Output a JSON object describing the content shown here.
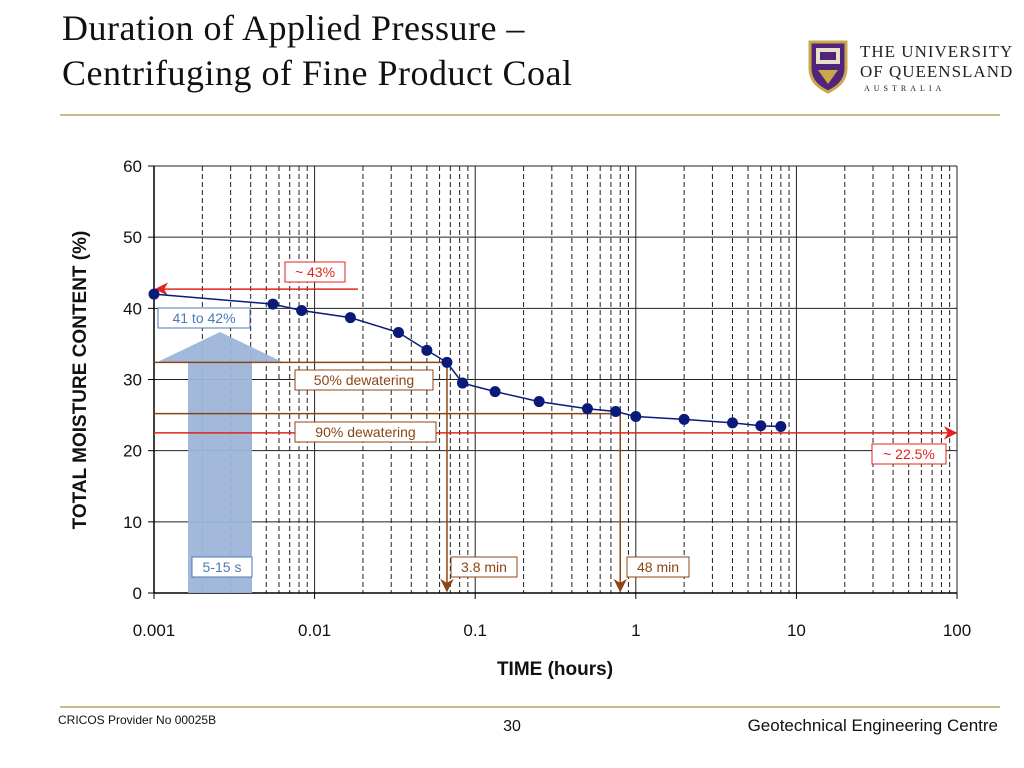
{
  "slide": {
    "title_line1": "Duration of Applied Pressure –",
    "title_line2": "Centrifuging of Fine Product Coal",
    "logo": {
      "line1": "THE UNIVERSITY",
      "line2": "OF QUEENSLAND",
      "line3": "AUSTRALIA"
    },
    "footer_left": "CRICOS Provider No 00025B",
    "page_number": "30",
    "footer_right": "Geotechnical Engineering Centre"
  },
  "colors": {
    "series": "#0a1a7a",
    "red": "#e0241b",
    "brown": "#8b4513",
    "blue_arrow": "#9db5d9",
    "blue_text": "#4a7ab8"
  },
  "chart_data": {
    "type": "scatter",
    "xlabel": "TIME (hours)",
    "ylabel": "TOTAL MOISTURE CONTENT (%)",
    "xscale": "log",
    "xlim": [
      0.001,
      100
    ],
    "ylim": [
      0,
      60
    ],
    "x_ticks": [
      0.001,
      0.01,
      0.1,
      1,
      10,
      100
    ],
    "x_tick_labels": [
      "0.001",
      "0.01",
      "0.1",
      "1",
      "10",
      "100"
    ],
    "y_ticks": [
      0,
      10,
      20,
      30,
      40,
      50,
      60
    ],
    "y_tick_labels": [
      "0",
      "10",
      "20",
      "30",
      "40",
      "50",
      "60"
    ],
    "grid": true,
    "legend": "none",
    "series": [
      {
        "x": [
          0.001,
          0.0055,
          0.0083,
          0.0167,
          0.0333,
          0.05,
          0.0667,
          0.0833,
          0.133,
          0.25,
          0.5,
          0.75,
          1.0,
          2.0,
          4.0,
          6.0,
          8.0
        ],
        "y": [
          42.0,
          40.6,
          39.7,
          38.7,
          36.6,
          34.1,
          32.4,
          29.5,
          28.3,
          26.9,
          25.9,
          25.5,
          24.8,
          24.4,
          23.9,
          23.5,
          23.4
        ]
      }
    ],
    "annotations": {
      "a43": "~ 43%",
      "range": "41 to 42%",
      "d50": "50% dewatering",
      "d90": "90% dewatering",
      "a225": "~ 22.5%",
      "t1": "5-15 s",
      "t2": "3.8 min",
      "t3": "48 min"
    }
  }
}
